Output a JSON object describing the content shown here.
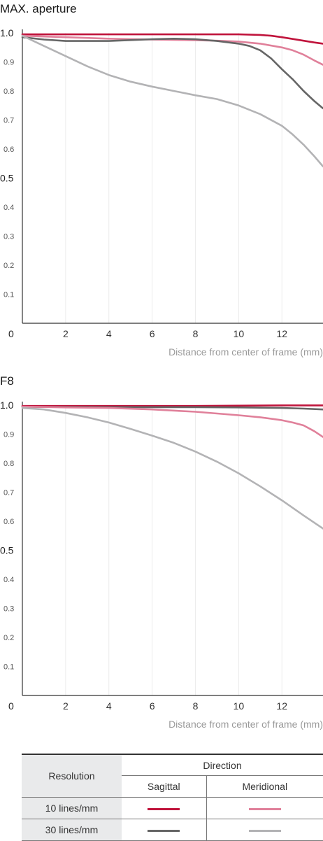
{
  "colors": {
    "s10": "#c0143c",
    "m10": "#e0809a",
    "s30": "#666666",
    "m30": "#b3b3b5"
  },
  "chart_data": [
    {
      "type": "line",
      "title": "MAX. aperture",
      "xlabel": "Distance from center of frame (mm)",
      "ylabel": "",
      "xlim": [
        0,
        13.9
      ],
      "ylim": [
        0,
        1.0
      ],
      "xticks": [
        "2",
        "4",
        "6",
        "8",
        "10",
        "12"
      ],
      "yticks": [
        "0.1",
        "0.2",
        "0.3",
        "0.4",
        "0.5",
        "0.6",
        "0.7",
        "0.8",
        "0.9",
        "1.0"
      ],
      "origin_label": "0",
      "grid": "vertical",
      "series": [
        {
          "key": "s10",
          "x": [
            0,
            2,
            4,
            6,
            8,
            10,
            11,
            11.5,
            12,
            12.5,
            13,
            13.5,
            13.9
          ],
          "y": [
            0.995,
            0.995,
            0.995,
            0.995,
            0.995,
            0.995,
            0.993,
            0.99,
            0.985,
            0.979,
            0.973,
            0.967,
            0.963
          ]
        },
        {
          "key": "m10",
          "x": [
            0,
            2,
            4,
            6,
            8,
            9,
            10,
            11,
            12,
            12.5,
            13,
            13.5,
            13.9
          ],
          "y": [
            0.99,
            0.985,
            0.98,
            0.977,
            0.975,
            0.973,
            0.97,
            0.963,
            0.95,
            0.94,
            0.925,
            0.905,
            0.89
          ]
        },
        {
          "key": "s30",
          "x": [
            0,
            1,
            2,
            4,
            6,
            7,
            8,
            9,
            10,
            10.5,
            11,
            11.5,
            12,
            12.5,
            13,
            13.5,
            13.9
          ],
          "y": [
            0.985,
            0.977,
            0.972,
            0.972,
            0.978,
            0.98,
            0.978,
            0.972,
            0.963,
            0.955,
            0.94,
            0.912,
            0.875,
            0.84,
            0.8,
            0.765,
            0.74
          ]
        },
        {
          "key": "m30",
          "x": [
            0,
            1,
            2,
            3,
            4,
            5,
            6,
            7,
            8,
            9,
            10,
            11,
            12,
            12.5,
            13,
            13.5,
            13.9
          ],
          "y": [
            0.99,
            0.955,
            0.92,
            0.885,
            0.855,
            0.832,
            0.815,
            0.8,
            0.785,
            0.772,
            0.75,
            0.72,
            0.68,
            0.65,
            0.615,
            0.575,
            0.54
          ]
        }
      ]
    },
    {
      "type": "line",
      "title": "F8",
      "xlabel": "Distance from center of frame (mm)",
      "ylabel": "",
      "xlim": [
        0,
        13.9
      ],
      "ylim": [
        0,
        1.0
      ],
      "xticks": [
        "2",
        "4",
        "6",
        "8",
        "10",
        "12"
      ],
      "yticks": [
        "0.1",
        "0.2",
        "0.3",
        "0.4",
        "0.5",
        "0.6",
        "0.7",
        "0.8",
        "0.9",
        "1.0"
      ],
      "origin_label": "0",
      "grid": "vertical",
      "series": [
        {
          "key": "s10",
          "x": [
            0,
            4,
            8,
            10,
            12,
            13.9
          ],
          "y": [
            0.997,
            0.997,
            0.997,
            0.998,
            0.999,
            0.999
          ]
        },
        {
          "key": "s30",
          "x": [
            0,
            4,
            8,
            10,
            12,
            13,
            13.9
          ],
          "y": [
            0.994,
            0.993,
            0.993,
            0.992,
            0.99,
            0.988,
            0.985
          ]
        },
        {
          "key": "m10",
          "x": [
            0,
            2,
            4,
            6,
            8,
            10,
            11,
            12,
            12.5,
            13,
            13.5,
            13.9
          ],
          "y": [
            0.995,
            0.992,
            0.99,
            0.985,
            0.977,
            0.965,
            0.958,
            0.948,
            0.94,
            0.93,
            0.91,
            0.89
          ]
        },
        {
          "key": "m30",
          "x": [
            0,
            1,
            2,
            3,
            4,
            5,
            6,
            7,
            8,
            9,
            10,
            11,
            12,
            13,
            13.9
          ],
          "y": [
            0.99,
            0.985,
            0.973,
            0.958,
            0.94,
            0.918,
            0.895,
            0.87,
            0.84,
            0.805,
            0.765,
            0.72,
            0.672,
            0.62,
            0.575
          ]
        }
      ]
    }
  ],
  "legend": {
    "resolution_header": "Resolution",
    "direction_header": "Direction",
    "sagittal": "Sagittal",
    "meridional": "Meridional",
    "rows": [
      {
        "label": "10 lines/mm",
        "sag": "s10",
        "mer": "m10"
      },
      {
        "label": "30 lines/mm",
        "sag": "s30",
        "mer": "m30"
      }
    ]
  }
}
